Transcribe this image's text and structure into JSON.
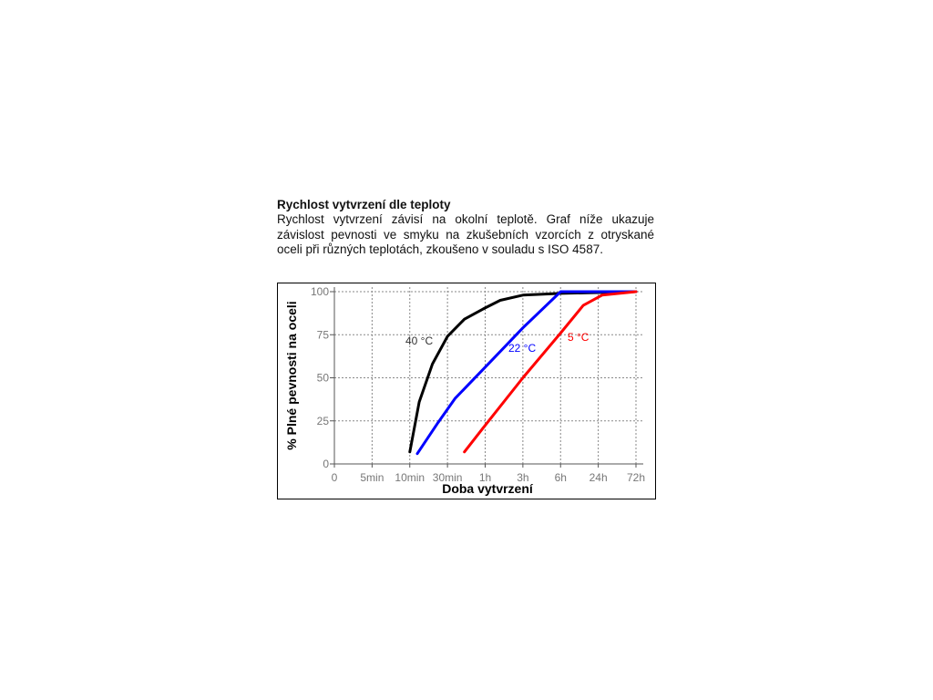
{
  "document": {
    "title": "Rychlost vytvrzení dle teploty",
    "paragraph": "Rychlost vytvrzení závisí na okolní teplotě. Graf níže ukazuje závislost pevnosti ve smyku na zkušebních vzorcích z otryskané oceli při různých teplotách, zkoušeno v souladu s ISO 4587."
  },
  "chart_data": {
    "type": "line",
    "xlabel": "Doba vytvrzení",
    "ylabel": "% Plné pevnosti na oceli",
    "xlim": [
      0,
      8
    ],
    "ylim": [
      0,
      100
    ],
    "xticks": [
      0,
      {
        "value": 1,
        "label": "5min"
      },
      {
        "value": 2,
        "label": "10min"
      },
      {
        "value": 3,
        "label": "30min"
      },
      {
        "value": 4,
        "label": "1h"
      },
      {
        "value": 5,
        "label": "3h"
      },
      {
        "value": 6,
        "label": "6h"
      },
      {
        "value": 7,
        "label": "24h"
      },
      {
        "value": 8,
        "label": "72h"
      }
    ],
    "yticks": [
      0,
      25,
      50,
      75,
      100
    ],
    "grid": true,
    "series": [
      {
        "name": "40 °C",
        "color": "#000000",
        "x": [
          2.0,
          2.25,
          2.6,
          3.0,
          3.45,
          3.95,
          4.4,
          5.0,
          6.0,
          8.0
        ],
        "values": [
          7,
          36,
          58,
          74,
          84,
          90,
          95,
          98,
          99,
          100
        ]
      },
      {
        "name": "22 °C",
        "color": "#0000ff",
        "x": [
          2.2,
          2.75,
          3.2,
          3.95,
          5.0,
          6.0,
          8.0
        ],
        "values": [
          6,
          24,
          38,
          55,
          79,
          100,
          100
        ]
      },
      {
        "name": "5 °C",
        "color": "#ff0000",
        "x": [
          3.45,
          3.95,
          5.0,
          6.0,
          6.6,
          7.1,
          8.0
        ],
        "values": [
          7,
          21,
          50,
          76,
          92,
          98,
          100
        ]
      }
    ]
  }
}
